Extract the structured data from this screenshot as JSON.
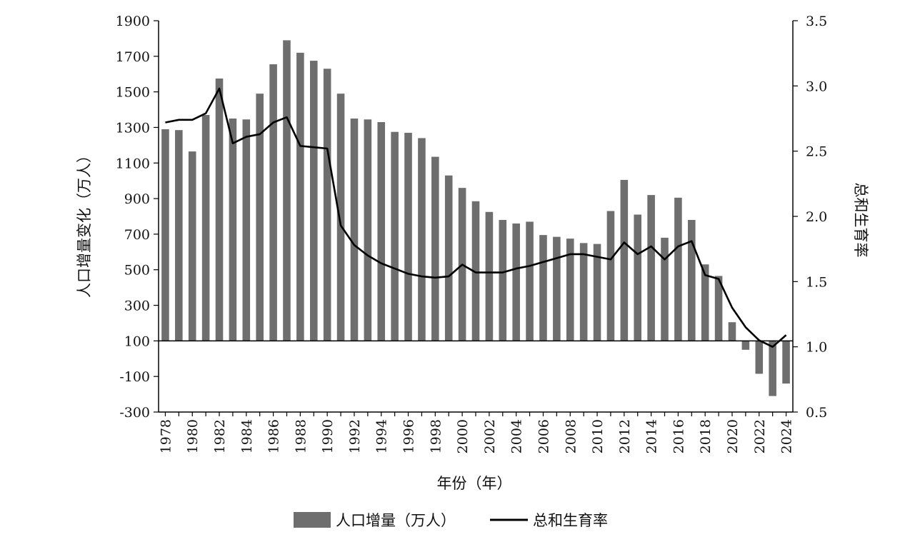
{
  "chart_data": {
    "type": "bar+line",
    "x_label": "年份（年）",
    "y_left_label": "人口增量变化（万人）",
    "y_right_label": "总和生育率",
    "y_left_range": [
      -300,
      1900
    ],
    "y_left_ticks": [
      "1900",
      "1700",
      "1500",
      "1300",
      "1100",
      "900",
      "700",
      "500",
      "300",
      "100",
      "-100",
      "-300"
    ],
    "y_right_range": [
      0.5,
      3.5
    ],
    "y_right_ticks": [
      "3.5",
      "3.0",
      "2.5",
      "2.0",
      "1.5",
      "1.0",
      "0.5"
    ],
    "baseline": 100,
    "x_ticks": [
      "1978",
      "1980",
      "1982",
      "1984",
      "1986",
      "1988",
      "1990",
      "1992",
      "1994",
      "1996",
      "1998",
      "2000",
      "2002",
      "2004",
      "2006",
      "2008",
      "2010",
      "2012",
      "2014",
      "2016",
      "2018",
      "2020",
      "2022",
      "2024"
    ],
    "years": [
      1978,
      1979,
      1980,
      1981,
      1982,
      1983,
      1984,
      1985,
      1986,
      1987,
      1988,
      1989,
      1990,
      1991,
      1992,
      1993,
      1994,
      1995,
      1996,
      1997,
      1998,
      1999,
      2000,
      2001,
      2002,
      2003,
      2004,
      2005,
      2006,
      2007,
      2008,
      2009,
      2010,
      2011,
      2012,
      2013,
      2014,
      2015,
      2016,
      2017,
      2018,
      2019,
      2020,
      2021,
      2022,
      2023,
      2024
    ],
    "series": [
      {
        "name": "人口增量（万人）",
        "type": "bar",
        "color": "#6e6e6e",
        "values": [
          1290,
          1285,
          1165,
          1370,
          1575,
          1350,
          1345,
          1490,
          1655,
          1790,
          1720,
          1675,
          1630,
          1490,
          1350,
          1345,
          1330,
          1275,
          1270,
          1240,
          1135,
          1030,
          960,
          885,
          825,
          780,
          760,
          770,
          695,
          685,
          675,
          650,
          645,
          830,
          1005,
          810,
          920,
          680,
          905,
          780,
          530,
          465,
          205,
          50,
          -85,
          -210,
          -140
        ]
      },
      {
        "name": "总和生育率",
        "type": "line",
        "color": "#000000",
        "values": [
          2.72,
          2.74,
          2.74,
          2.79,
          2.98,
          2.56,
          2.61,
          2.63,
          2.72,
          2.76,
          2.54,
          2.53,
          2.52,
          1.93,
          1.78,
          1.7,
          1.64,
          1.6,
          1.56,
          1.54,
          1.53,
          1.54,
          1.63,
          1.57,
          1.57,
          1.57,
          1.6,
          1.62,
          1.65,
          1.68,
          1.71,
          1.71,
          1.69,
          1.67,
          1.8,
          1.71,
          1.77,
          1.67,
          1.77,
          1.81,
          1.55,
          1.52,
          1.3,
          1.15,
          1.05,
          1.0,
          1.09
        ]
      }
    ],
    "legend": {
      "position": "bottom",
      "items": [
        "人口增量（万人）",
        "总和生育率"
      ]
    }
  }
}
